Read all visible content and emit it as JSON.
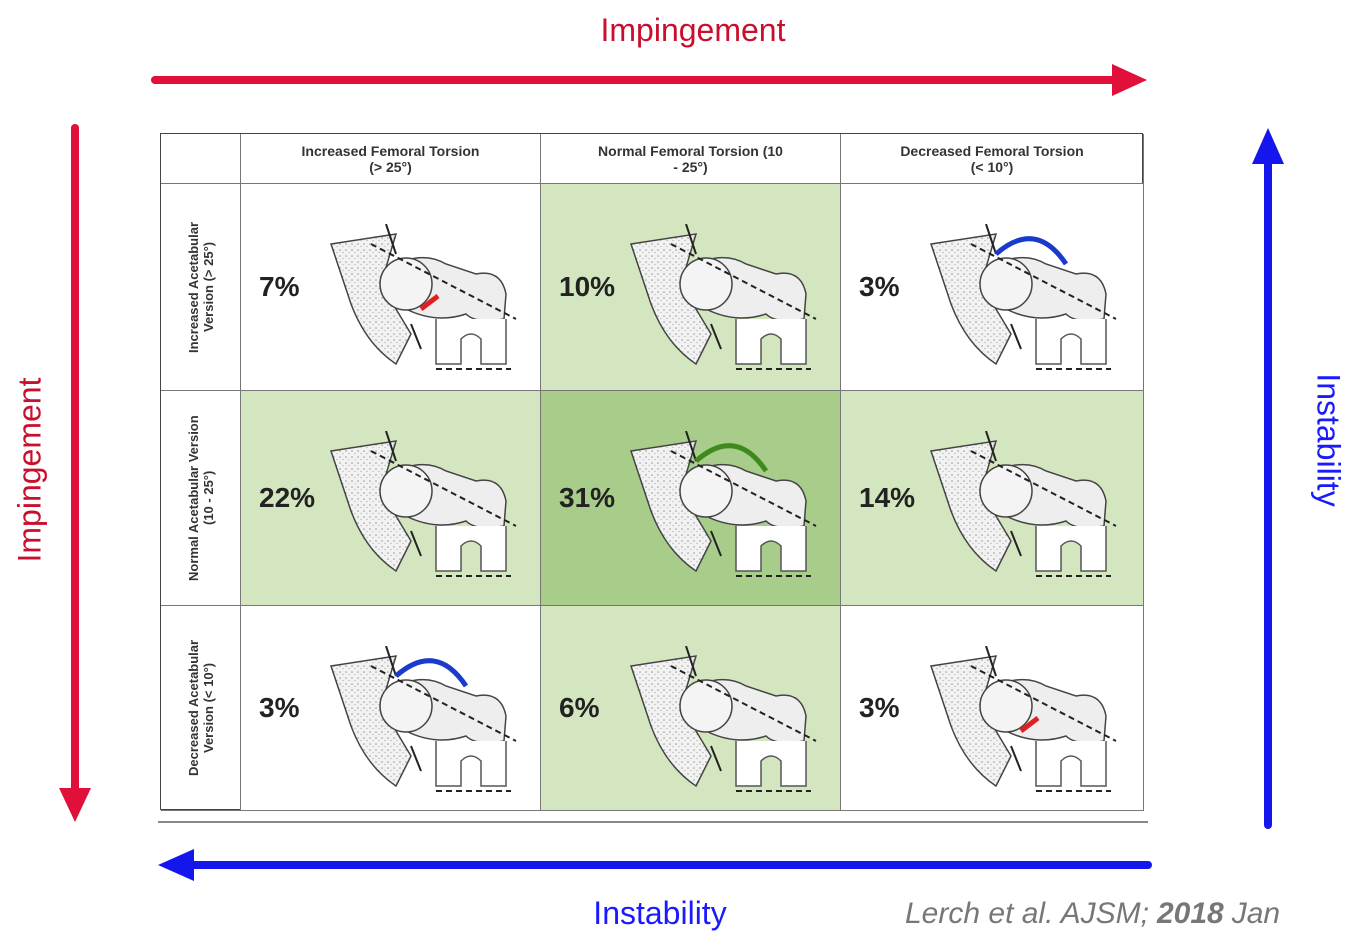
{
  "top_label": "Impingement",
  "left_label": "Impingement",
  "right_label": "Instability",
  "bottom_label": "Instability",
  "table": {
    "columns": [
      "Increased Femoral Torsion (> 25°)",
      "Normal Femoral Torsion (10 - 25°)",
      "Decreased Femoral Torsion (< 10°)"
    ],
    "rows": [
      {
        "header": "Increased Acetabular Version (> 25°)",
        "cells": [
          "7%",
          "10%",
          "3%"
        ]
      },
      {
        "header": "Normal Acetabular Version (10 - 25°)",
        "cells": [
          "22%",
          "31%",
          "14%"
        ]
      },
      {
        "header": "Decreased Acetabular Version (< 10°)",
        "cells": [
          "3%",
          "6%",
          "3%"
        ]
      }
    ]
  },
  "citation": {
    "authors": "Lerch et al. AJSM;",
    "year": "2018",
    "month": "Jan"
  }
}
